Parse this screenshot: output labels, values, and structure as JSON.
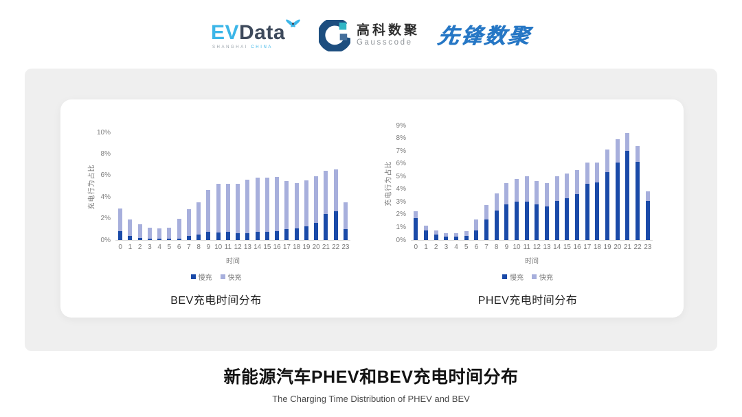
{
  "header": {
    "evdata": {
      "part1": "EV",
      "part2": "Data",
      "sub1": "SHANGHAI ",
      "sub2": "CHINA"
    },
    "gausscode": {
      "cn": "高科数聚",
      "en": "Gausscode"
    },
    "pioneer": {
      "text": "先锋数聚"
    }
  },
  "colors": {
    "slow": "#1a4aa8",
    "fast": "#a7afdc",
    "panel": "#efefef"
  },
  "chart_data": [
    {
      "type": "bar",
      "stacked": true,
      "title": "BEV充电时间分布",
      "ylabel": "充电行为占比",
      "xlabel": "时间",
      "categories": [
        0,
        1,
        2,
        3,
        4,
        5,
        6,
        7,
        8,
        9,
        10,
        11,
        12,
        13,
        14,
        15,
        16,
        17,
        18,
        19,
        20,
        21,
        22,
        23
      ],
      "series": [
        {
          "name": "慢充",
          "color": "#1a4aa8",
          "values": [
            0.8,
            0.4,
            0.2,
            0.1,
            0.1,
            0.1,
            0.15,
            0.4,
            0.5,
            0.75,
            0.7,
            0.75,
            0.65,
            0.65,
            0.75,
            0.75,
            0.85,
            1.0,
            1.1,
            1.3,
            1.6,
            2.4,
            2.7,
            1.0
          ]
        },
        {
          "name": "快充",
          "color": "#a7afdc",
          "values": [
            2.1,
            1.5,
            1.3,
            1.05,
            1.0,
            1.05,
            1.85,
            2.45,
            3.0,
            3.9,
            4.5,
            4.5,
            4.6,
            4.95,
            5.05,
            5.05,
            5.0,
            4.45,
            4.2,
            4.25,
            4.3,
            4.05,
            3.85,
            2.5
          ]
        }
      ],
      "ylim": [
        0,
        10
      ],
      "ytick_step": 2,
      "ytick_suffix": "%",
      "grid": false,
      "legend_position": "bottom"
    },
    {
      "type": "bar",
      "stacked": true,
      "title": "PHEV充电时间分布",
      "ylabel": "充电行为占比",
      "xlabel": "时间",
      "categories": [
        0,
        1,
        2,
        3,
        4,
        5,
        6,
        7,
        8,
        9,
        10,
        11,
        12,
        13,
        14,
        15,
        16,
        17,
        18,
        19,
        20,
        21,
        22,
        23
      ],
      "series": [
        {
          "name": "慢充",
          "color": "#1a4aa8",
          "values": [
            1.75,
            0.75,
            0.45,
            0.25,
            0.25,
            0.3,
            0.75,
            1.6,
            2.3,
            2.8,
            3.0,
            3.0,
            2.8,
            2.65,
            3.1,
            3.3,
            3.6,
            4.4,
            4.55,
            5.35,
            6.1,
            7.0,
            6.15,
            3.05
          ]
        },
        {
          "name": "快充",
          "color": "#a7afdc",
          "values": [
            0.5,
            0.4,
            0.3,
            0.3,
            0.3,
            0.4,
            0.85,
            1.15,
            1.35,
            1.7,
            1.8,
            2.0,
            1.85,
            1.85,
            1.9,
            1.95,
            1.9,
            1.7,
            1.55,
            1.75,
            1.8,
            1.4,
            1.25,
            0.8
          ]
        }
      ],
      "ylim": [
        0,
        9
      ],
      "ytick_step": 1,
      "ytick_suffix": "%",
      "grid": false,
      "legend_position": "bottom"
    }
  ],
  "footer": {
    "title": "新能源汽车PHEV和BEV充电时间分布",
    "subtitle": "The Charging Time Distribution of PHEV and BEV"
  }
}
